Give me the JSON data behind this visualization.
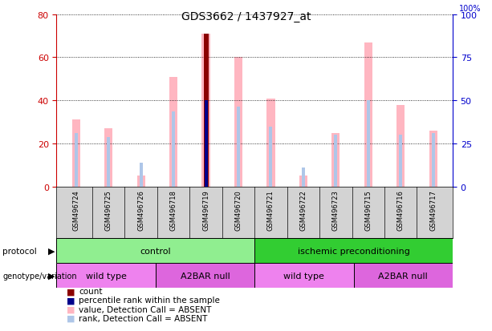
{
  "title": "GDS3662 / 1437927_at",
  "samples": [
    "GSM496724",
    "GSM496725",
    "GSM496726",
    "GSM496718",
    "GSM496719",
    "GSM496720",
    "GSM496721",
    "GSM496722",
    "GSM496723",
    "GSM496715",
    "GSM496716",
    "GSM496717"
  ],
  "ylim_left": [
    0,
    80
  ],
  "ylim_right": [
    0,
    100
  ],
  "yticks_left": [
    0,
    20,
    40,
    60,
    80
  ],
  "yticks_right": [
    0,
    25,
    50,
    75,
    100
  ],
  "value_bars": [
    31,
    27,
    5,
    51,
    71,
    60,
    41,
    5,
    25,
    67,
    38,
    26
  ],
  "rank_bars": [
    25,
    23,
    11,
    35,
    40,
    37,
    28,
    9,
    24,
    40,
    24,
    25
  ],
  "count_bar_index": 4,
  "count_bar_height": 71,
  "percentile_rank_index": 4,
  "percentile_rank_value": 40,
  "value_bar_color": "#ffb6c1",
  "rank_bar_color": "#aec6e8",
  "count_bar_color": "#8b0000",
  "percentile_bar_color": "#00008b",
  "left_axis_color": "#cc0000",
  "right_axis_color": "#0000cc",
  "tick_label_area_color": "#d3d3d3",
  "protocol_light_green": "#90ee90",
  "protocol_dark_green": "#32cd32",
  "genotype_pink": "#ee82ee",
  "genotype_magenta": "#dd66dd"
}
